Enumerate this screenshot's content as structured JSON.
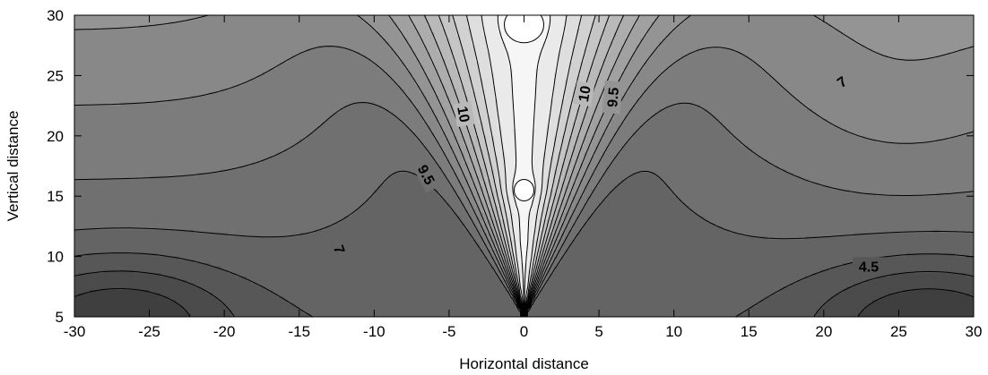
{
  "chart_data": {
    "type": "contour",
    "title": "",
    "xlabel": "Horizontal distance",
    "ylabel": "Vertical distance",
    "xlim": [
      -30,
      30
    ],
    "ylim": [
      5,
      30
    ],
    "x_ticks": [
      "-30",
      "-25",
      "-20",
      "-15",
      "-10",
      "-5",
      "0",
      "5",
      "10",
      "15",
      "20",
      "25",
      "30"
    ],
    "y_ticks": [
      "5",
      "10",
      "15",
      "20",
      "25",
      "30"
    ],
    "grid": false,
    "contour_labels": [
      {
        "text": "10",
        "x": -4,
        "y": 21.8,
        "angle": 80
      },
      {
        "text": "10",
        "x": 4,
        "y": 23.5,
        "angle": -80
      },
      {
        "text": "9.5",
        "x": 5.9,
        "y": 23.2,
        "angle": -85
      },
      {
        "text": "9.5",
        "x": -6.5,
        "y": 16.8,
        "angle": 62
      },
      {
        "text": "7",
        "x": -12.3,
        "y": 10.6,
        "angle": 70
      },
      {
        "text": "7",
        "x": 21.2,
        "y": 24.5,
        "angle": -35
      },
      {
        "text": "4.5",
        "x": 23,
        "y": 9.2,
        "angle": 0
      }
    ],
    "peak_markers": [
      {
        "x": 0,
        "y": 29.2
      },
      {
        "x": 0,
        "y": 15.5
      }
    ],
    "colors": {
      "low": "#3f3f3f",
      "high": "#f6f6f6",
      "line": "#000000"
    }
  }
}
